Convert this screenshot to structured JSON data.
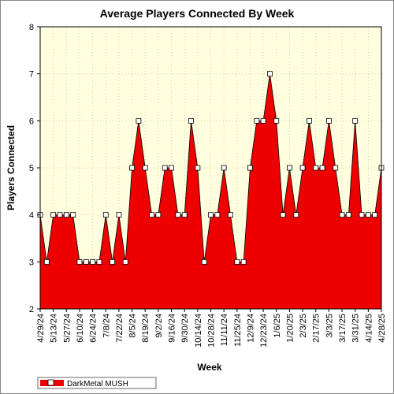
{
  "chart_data": {
    "type": "area",
    "title": "Average Players Connected By Week",
    "xlabel": "Week",
    "ylabel": "Players Connected",
    "ylim": [
      2,
      8
    ],
    "y_ticks": [
      2,
      3,
      4,
      5,
      6,
      7,
      8
    ],
    "grid": true,
    "legend_position": "bottom-left",
    "x_tick_labels": [
      "4/29/24",
      "5/13/24",
      "5/27/24",
      "6/10/24",
      "6/24/24",
      "7/8/24",
      "7/22/24",
      "8/5/24",
      "8/19/24",
      "9/2/24",
      "9/16/24",
      "9/30/24",
      "10/14/24",
      "10/28/24",
      "11/11/24",
      "11/25/24",
      "12/9/24",
      "12/23/24",
      "1/6/25",
      "1/20/25",
      "2/3/25",
      "2/17/25",
      "3/3/25",
      "3/17/25",
      "3/31/25",
      "4/14/25",
      "4/28/25"
    ],
    "series": [
      {
        "name": "DarkMetal MUSH",
        "color": "#ee0000",
        "values": [
          4,
          3,
          4,
          4,
          4,
          4,
          3,
          3,
          3,
          3,
          4,
          3,
          4,
          3,
          5,
          6,
          5,
          4,
          4,
          5,
          5,
          4,
          4,
          6,
          5,
          3,
          4,
          4,
          5,
          4,
          3,
          3,
          5,
          6,
          6,
          7,
          6,
          4,
          5,
          4,
          5,
          6,
          5,
          5,
          6,
          5,
          4,
          4,
          6,
          4,
          4,
          4,
          5
        ]
      }
    ]
  },
  "colors": {
    "plot_background": "#ffffe0",
    "area_fill": "#ee0000",
    "marker_fill": "#ffffff",
    "gridline": "#c8c8a0"
  }
}
